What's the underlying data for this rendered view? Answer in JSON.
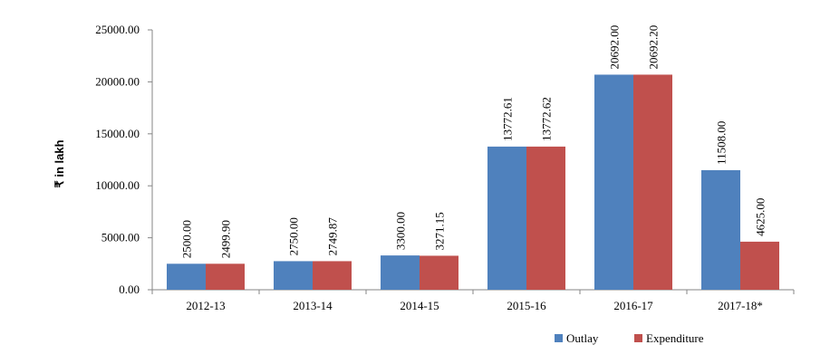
{
  "chart_data": {
    "type": "bar",
    "ylabel": "₹ in lakh",
    "xlabel": "",
    "categories": [
      "2012-13",
      "2013-14",
      "2014-15",
      "2015-16",
      "2016-17",
      "2017-18*"
    ],
    "ylim": [
      0,
      25000
    ],
    "yticks": [
      0,
      5000,
      10000,
      15000,
      20000,
      25000
    ],
    "ytick_labels": [
      "0.00",
      "5000.00",
      "10000.00",
      "15000.00",
      "20000.00",
      "25000.00"
    ],
    "grid": false,
    "legend_position": "bottom-right",
    "series": [
      {
        "name": "Outlay",
        "color": "#4F81BD",
        "values": [
          2500.0,
          2750.0,
          3300.0,
          13772.61,
          20692.0,
          11508.0
        ],
        "labels": [
          "2500.00",
          "2750.00",
          "3300.00",
          "13772.61",
          "20692.00",
          "11508.00"
        ]
      },
      {
        "name": "Expenditure",
        "color": "#C0504D",
        "values": [
          2499.9,
          2749.87,
          3271.15,
          13772.62,
          20692.2,
          4625.0
        ],
        "labels": [
          "2499.90",
          "2749.87",
          "3271.15",
          "13772.62",
          "20692.20",
          "4625.00"
        ]
      }
    ]
  }
}
